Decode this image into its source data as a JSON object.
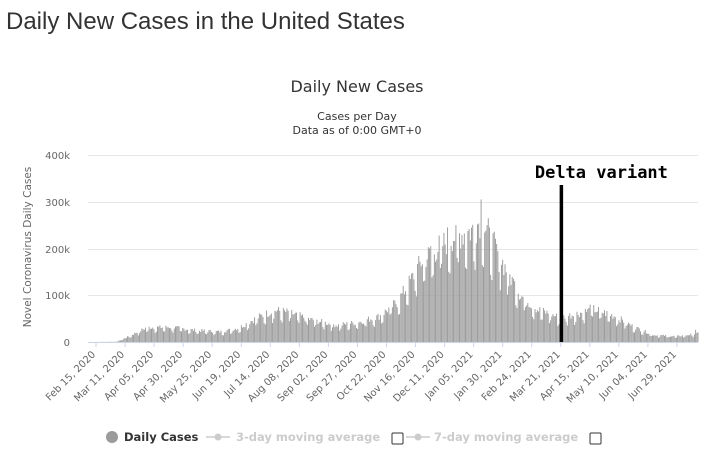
{
  "page": {
    "title": "Daily New Cases in the United States"
  },
  "chart_data": {
    "type": "bar",
    "title": "Daily New Cases",
    "subtitle_1": "Cases per Day",
    "subtitle_2": "Data as of 0:00 GMT+0",
    "ylabel": "Novel Coronavirus Daily Cases",
    "xlabel": "",
    "ylim": [
      0,
      400000
    ],
    "y_ticks": [
      "0",
      "100k",
      "200k",
      "300k",
      "400k"
    ],
    "x_range": [
      "2020-02-15",
      "2021-07-08"
    ],
    "x_ticks": [
      "Feb 15, 2020",
      "Mar 11, 2020",
      "Apr 05, 2020",
      "Apr 30, 2020",
      "May 25, 2020",
      "Jun 19, 2020",
      "Jul 14, 2020",
      "Aug 08, 2020",
      "Sep 02, 2020",
      "Sep 27, 2020",
      "Oct 22, 2020",
      "Nov 16, 2020",
      "Dec 11, 2020",
      "Jan 05, 2021",
      "Jan 30, 2021",
      "Feb 24, 2021",
      "Mar 21, 2021",
      "Apr 15, 2021",
      "May 10, 2021",
      "Jun 04, 2021",
      "Jun 29, 2021"
    ],
    "series_color": "#9b9b9b",
    "trend_points": [
      [
        "2020-02-15",
        0
      ],
      [
        "2020-03-10",
        500
      ],
      [
        "2020-03-20",
        12000
      ],
      [
        "2020-04-04",
        31000
      ],
      [
        "2020-04-24",
        32000
      ],
      [
        "2020-05-15",
        25000
      ],
      [
        "2020-06-05",
        22000
      ],
      [
        "2020-06-20",
        30000
      ],
      [
        "2020-07-05",
        52000
      ],
      [
        "2020-07-20",
        68000
      ],
      [
        "2020-08-01",
        63000
      ],
      [
        "2020-08-20",
        47000
      ],
      [
        "2020-09-10",
        36000
      ],
      [
        "2020-09-27",
        42000
      ],
      [
        "2020-10-15",
        55000
      ],
      [
        "2020-10-30",
        85000
      ],
      [
        "2020-11-10",
        130000
      ],
      [
        "2020-11-20",
        175000
      ],
      [
        "2020-12-03",
        200000
      ],
      [
        "2020-12-15",
        225000
      ],
      [
        "2021-01-02",
        240000
      ],
      [
        "2021-01-08",
        265000
      ],
      [
        "2021-01-20",
        200000
      ],
      [
        "2021-01-30",
        150000
      ],
      [
        "2021-02-10",
        100000
      ],
      [
        "2021-02-24",
        70000
      ],
      [
        "2021-03-15",
        52000
      ],
      [
        "2021-03-28",
        60000
      ],
      [
        "2021-04-12",
        70000
      ],
      [
        "2021-04-30",
        55000
      ],
      [
        "2021-05-15",
        33000
      ],
      [
        "2021-06-01",
        15000
      ],
      [
        "2021-06-20",
        12000
      ],
      [
        "2021-07-08",
        18000
      ]
    ],
    "spikes": [
      [
        "2020-11-27",
        205000
      ],
      [
        "2020-12-11",
        245000
      ],
      [
        "2020-12-18",
        250000
      ],
      [
        "2021-01-08",
        305000
      ],
      [
        "2021-01-15",
        245000
      ],
      [
        "2021-02-05",
        130000
      ],
      [
        "2021-04-09",
        80000
      ],
      [
        "2021-07-06",
        26000
      ]
    ],
    "annotation": {
      "text": "Delta variant",
      "date": "2021-03-16"
    },
    "legend": [
      {
        "name": "Daily Cases",
        "active": true
      },
      {
        "name": "3-day moving average",
        "active": false
      },
      {
        "name": "7-day moving average",
        "active": false
      }
    ]
  }
}
